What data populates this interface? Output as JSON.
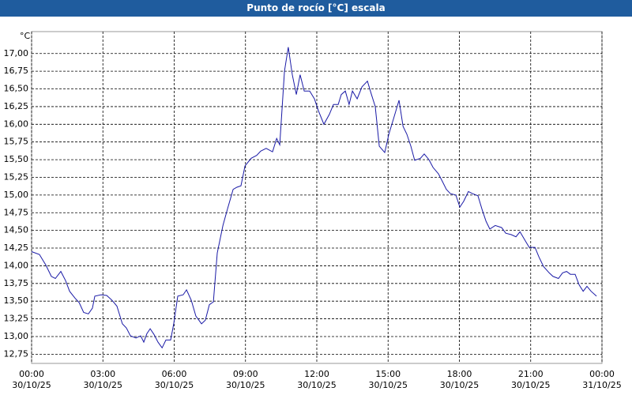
{
  "chart_data": {
    "type": "line",
    "title": "Punto de rocío [°C] escala",
    "y_label": "°C",
    "xlim": [
      0,
      24
    ],
    "ylim": [
      12.62,
      17.31
    ],
    "grid": true,
    "xticks": [
      {
        "value": 0,
        "label": "00:00\n30/10/25"
      },
      {
        "value": 3,
        "label": "03:00\n30/10/25"
      },
      {
        "value": 6,
        "label": "06:00\n30/10/25"
      },
      {
        "value": 9,
        "label": "09:00\n30/10/25"
      },
      {
        "value": 12,
        "label": "12:00\n30/10/25"
      },
      {
        "value": 15,
        "label": "15:00\n30/10/25"
      },
      {
        "value": 18,
        "label": "18:00\n30/10/25"
      },
      {
        "value": 21,
        "label": "21:00\n30/10/25"
      },
      {
        "value": 24,
        "label": "00:00\n31/10/25"
      }
    ],
    "yticks": [
      {
        "value": 12.75,
        "label": "12,75"
      },
      {
        "value": 13,
        "label": "13,00"
      },
      {
        "value": 13.25,
        "label": "13,25"
      },
      {
        "value": 13.5,
        "label": "13,50"
      },
      {
        "value": 13.75,
        "label": "13,75"
      },
      {
        "value": 14,
        "label": "14,00"
      },
      {
        "value": 14.25,
        "label": "14,25"
      },
      {
        "value": 14.5,
        "label": "14,50"
      },
      {
        "value": 14.75,
        "label": "14,75"
      },
      {
        "value": 15,
        "label": "15,00"
      },
      {
        "value": 15.25,
        "label": "15,25"
      },
      {
        "value": 15.5,
        "label": "15,50"
      },
      {
        "value": 15.75,
        "label": "15,75"
      },
      {
        "value": 16,
        "label": "16,00"
      },
      {
        "value": 16.25,
        "label": "16,25"
      },
      {
        "value": 16.5,
        "label": "16,50"
      },
      {
        "value": 16.75,
        "label": "16,75"
      },
      {
        "value": 17,
        "label": "17,00"
      }
    ],
    "x": [
      0,
      0.33,
      0.6,
      0.83,
      1.0,
      1.23,
      1.43,
      1.6,
      1.83,
      2.0,
      2.19,
      2.39,
      2.56,
      2.66,
      2.93,
      3.16,
      3.39,
      3.59,
      3.82,
      3.99,
      4.16,
      4.39,
      4.59,
      4.72,
      4.85,
      4.99,
      5.15,
      5.32,
      5.49,
      5.65,
      5.85,
      5.98,
      6.15,
      6.38,
      6.52,
      6.72,
      6.91,
      7.15,
      7.31,
      7.48,
      7.65,
      7.81,
      8.05,
      8.24,
      8.48,
      8.64,
      8.81,
      8.98,
      9.24,
      9.47,
      9.64,
      9.87,
      10.14,
      10.31,
      10.44,
      10.64,
      10.8,
      10.97,
      11.14,
      11.3,
      11.47,
      11.7,
      11.9,
      12.07,
      12.3,
      12.53,
      12.7,
      12.9,
      13.03,
      13.2,
      13.36,
      13.5,
      13.7,
      13.9,
      14.13,
      14.3,
      14.46,
      14.63,
      14.86,
      15.03,
      15.23,
      15.46,
      15.63,
      15.79,
      15.96,
      16.12,
      16.36,
      16.52,
      16.72,
      16.89,
      17.12,
      17.29,
      17.45,
      17.62,
      17.85,
      18.02,
      18.18,
      18.38,
      18.55,
      18.78,
      18.95,
      19.12,
      19.28,
      19.51,
      19.78,
      19.95,
      20.18,
      20.38,
      20.55,
      20.78,
      20.94,
      21.18,
      21.34,
      21.54,
      21.78,
      21.94,
      22.17,
      22.34,
      22.51,
      22.67,
      22.87,
      23.04,
      23.21,
      23.37,
      23.54,
      23.77
    ],
    "series": [
      {
        "name": "Punto de rocío",
        "color": "#1a1aa6",
        "values": [
          14.2,
          14.16,
          14.01,
          13.85,
          13.82,
          13.92,
          13.79,
          13.64,
          13.54,
          13.48,
          13.34,
          13.32,
          13.4,
          13.57,
          13.59,
          13.58,
          13.51,
          13.43,
          13.18,
          13.12,
          13.01,
          12.98,
          13.01,
          12.92,
          13.04,
          13.11,
          13.03,
          12.92,
          12.84,
          12.95,
          12.95,
          13.18,
          13.57,
          13.59,
          13.66,
          13.51,
          13.29,
          13.18,
          13.23,
          13.45,
          13.49,
          14.18,
          14.57,
          14.8,
          15.08,
          15.11,
          15.13,
          15.41,
          15.52,
          15.56,
          15.62,
          15.66,
          15.61,
          15.8,
          15.71,
          16.75,
          17.09,
          16.7,
          16.42,
          16.7,
          16.47,
          16.47,
          16.36,
          16.19,
          16.0,
          16.14,
          16.28,
          16.28,
          16.42,
          16.47,
          16.28,
          16.47,
          16.36,
          16.53,
          16.61,
          16.42,
          16.25,
          15.69,
          15.6,
          15.86,
          16.08,
          16.34,
          15.97,
          15.86,
          15.69,
          15.49,
          15.52,
          15.58,
          15.5,
          15.39,
          15.3,
          15.19,
          15.08,
          15.02,
          15.0,
          14.83,
          14.91,
          15.05,
          15.02,
          14.99,
          14.8,
          14.63,
          14.52,
          14.57,
          14.54,
          14.46,
          14.44,
          14.41,
          14.48,
          14.35,
          14.26,
          14.26,
          14.13,
          13.99,
          13.9,
          13.85,
          13.82,
          13.9,
          13.92,
          13.88,
          13.88,
          13.73,
          13.64,
          13.71,
          13.64,
          13.57
        ]
      }
    ]
  }
}
